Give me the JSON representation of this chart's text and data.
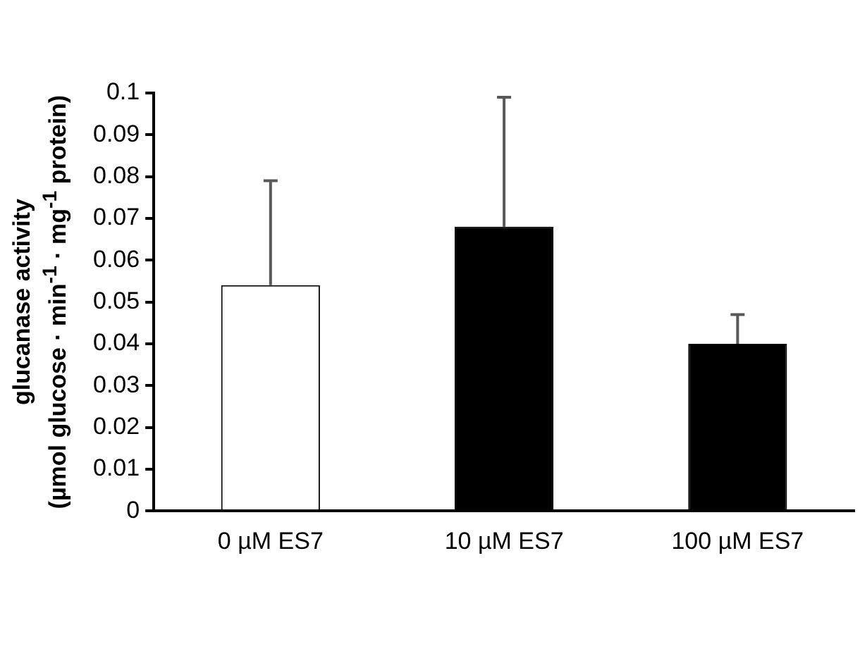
{
  "chart_data": {
    "type": "bar",
    "ylabel": "glucanase activity\n(µmol glucose · min$^{-1}$ · mg$^{-1}$ protein)",
    "categories": [
      "0 µM ES7",
      "10 µM ES7",
      "100 µM ES7"
    ],
    "values": [
      0.054,
      0.068,
      0.04
    ],
    "colors": [
      "#ffffff",
      "#000000",
      "#000000"
    ],
    "errors": [
      [
        0.054,
        0.079
      ],
      [
        0.068,
        0.099
      ],
      [
        0.04,
        0.047
      ]
    ],
    "ylim": [
      0,
      0.1
    ],
    "yticks": [
      0,
      0.01,
      0.02,
      0.03,
      0.04,
      0.05,
      0.06,
      0.07,
      0.08,
      0.09,
      0.1
    ],
    "grid": false,
    "legend": false
  }
}
